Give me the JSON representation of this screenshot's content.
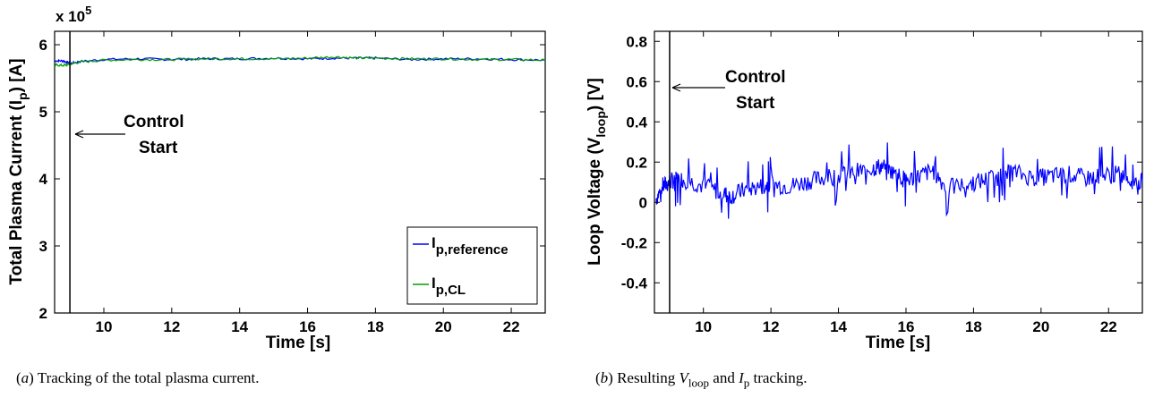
{
  "colors": {
    "reference": "#0000ff",
    "closed_loop": "#00a000",
    "vloop": "#0000ff",
    "axis": "#000000"
  },
  "chart_data": [
    {
      "type": "line",
      "title": "",
      "xlabel": "Time [s]",
      "ylabel_main": "Total Plasma Current (I",
      "ylabel_sub": "p",
      "ylabel_tail": ") [A]",
      "exponent_base": "x 10",
      "exponent_power": "5",
      "xlim": [
        8.55,
        23.0
      ],
      "ylim": [
        2.0,
        6.2
      ],
      "xticks": [
        10,
        12,
        14,
        16,
        18,
        20,
        22
      ],
      "yticks": [
        2,
        3,
        4,
        5,
        6
      ],
      "grid": false,
      "legend_position": "bottom-right",
      "legend": [
        {
          "base": "I",
          "sub": "p,reference"
        },
        {
          "base": "I",
          "sub": "p,CL"
        }
      ],
      "control_start_x": 9.0,
      "annotation": {
        "line1": "Control",
        "line2": "Start"
      },
      "series": [
        {
          "name": "I_p,reference",
          "x": [
            8.55,
            8.8,
            9.0,
            9.3,
            10.0,
            11.0,
            12.0,
            13.0,
            14.0,
            15.0,
            16.0,
            16.8,
            17.5,
            18.0,
            19.0,
            20.0,
            21.0,
            22.0,
            23.0
          ],
          "values": [
            5.76,
            5.76,
            5.72,
            5.75,
            5.78,
            5.79,
            5.78,
            5.79,
            5.79,
            5.8,
            5.79,
            5.8,
            5.8,
            5.8,
            5.78,
            5.79,
            5.79,
            5.78,
            5.77
          ]
        },
        {
          "name": "I_p,CL",
          "x": [
            8.55,
            8.8,
            9.0,
            9.3,
            10.0,
            11.0,
            12.0,
            13.0,
            14.0,
            15.0,
            16.0,
            16.8,
            17.5,
            18.0,
            19.0,
            20.0,
            21.0,
            22.0,
            23.0
          ],
          "values": [
            5.7,
            5.69,
            5.71,
            5.74,
            5.77,
            5.78,
            5.78,
            5.79,
            5.79,
            5.79,
            5.8,
            5.82,
            5.8,
            5.8,
            5.79,
            5.79,
            5.78,
            5.78,
            5.77
          ]
        }
      ]
    },
    {
      "type": "line",
      "title": "",
      "xlabel": "Time [s]",
      "ylabel_main": "Loop Voltage (V",
      "ylabel_sub": "loop",
      "ylabel_tail": ") [V]",
      "xlim": [
        8.55,
        23.0
      ],
      "ylim": [
        -0.55,
        0.85
      ],
      "xticks": [
        10,
        12,
        14,
        16,
        18,
        20,
        22
      ],
      "yticks": [
        -0.4,
        -0.2,
        0,
        0.2,
        0.4,
        0.6,
        0.8
      ],
      "ytick_labels": [
        "-0.4",
        "-0.2",
        "0",
        "0.2",
        "0.4",
        "0.6",
        "0.8"
      ],
      "grid": false,
      "control_start_x": 9.0,
      "annotation": {
        "line1": "Control",
        "line2": "Start"
      },
      "series": [
        {
          "name": "V_loop",
          "x": [
            8.6,
            8.8,
            9.0,
            9.2,
            9.5,
            10.0,
            10.5,
            10.8,
            11.2,
            11.7,
            12.0,
            12.5,
            13.0,
            13.5,
            14.0,
            14.5,
            15.0,
            15.3,
            15.7,
            16.0,
            16.4,
            16.8,
            17.2,
            17.8,
            18.3,
            18.8,
            19.2,
            19.8,
            20.3,
            20.8,
            21.3,
            21.8,
            22.3,
            22.7,
            23.0
          ],
          "values": [
            0.02,
            0.08,
            0.1,
            0.12,
            0.11,
            0.08,
            0.05,
            0.03,
            0.06,
            0.08,
            0.09,
            0.08,
            0.1,
            0.12,
            0.13,
            0.15,
            0.17,
            0.18,
            0.14,
            0.11,
            0.13,
            0.16,
            0.07,
            0.09,
            0.11,
            0.13,
            0.15,
            0.12,
            0.13,
            0.14,
            0.12,
            0.13,
            0.14,
            0.11,
            0.1
          ]
        }
      ]
    }
  ],
  "captions": {
    "a": {
      "label": "a",
      "text": " Tracking of the total plasma current."
    },
    "b": {
      "label": "b",
      "pre": " Resulting ",
      "v": "V",
      "v_sub": "loop",
      "mid": " and ",
      "i": "I",
      "i_sub": "p",
      "post": " tracking."
    }
  }
}
